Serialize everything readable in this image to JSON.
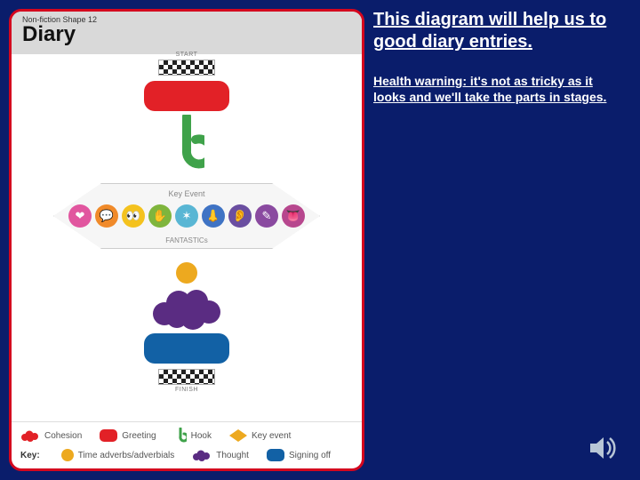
{
  "colors": {
    "slide_bg": "#0a1d6b",
    "card_border": "#d4061e",
    "header_bg": "#d9d9d9",
    "red": "#e22127",
    "green": "#3fa24a",
    "blue": "#1261a5",
    "orange": "#eda91f",
    "purple": "#5a2c82",
    "pink": "#e1569f",
    "teal": "#3aa39a"
  },
  "card": {
    "shape_label": "Non-fiction Shape 12",
    "title": "Diary",
    "start_label": "START",
    "finish_label": "FINISH",
    "diamond_title": "Key Event",
    "diamond_subtitle": "FANTASTICs",
    "fantastic_icons": [
      {
        "bg": "#e1569f",
        "glyph": "❤"
      },
      {
        "bg": "#f08a2a",
        "glyph": "💬"
      },
      {
        "bg": "#f4c21e",
        "glyph": "👀"
      },
      {
        "bg": "#7fb53d",
        "glyph": "✋"
      },
      {
        "bg": "#59b6d4",
        "glyph": "✶"
      },
      {
        "bg": "#3f73c4",
        "glyph": "👃"
      },
      {
        "bg": "#6a4ea0",
        "glyph": "👂"
      },
      {
        "bg": "#8a4aa0",
        "glyph": "✎"
      },
      {
        "bg": "#b7478e",
        "glyph": "👅"
      }
    ]
  },
  "legend": {
    "key_label": "Key:",
    "row1": [
      {
        "swatch_type": "cloud",
        "color": "#e22127",
        "label": "Cohesion"
      },
      {
        "swatch_type": "pill",
        "color": "#e22127",
        "label": "Greeting"
      },
      {
        "swatch_type": "hook",
        "color": "#3fa24a",
        "label": "Hook"
      },
      {
        "swatch_type": "diamond",
        "color": "#eda91f",
        "label": "Key event"
      }
    ],
    "row2": [
      {
        "swatch_type": "circle",
        "color": "#eda91f",
        "label": "Time adverbs/adverbials"
      },
      {
        "swatch_type": "cloud",
        "color": "#5a2c82",
        "label": "Thought"
      },
      {
        "swatch_type": "pill",
        "color": "#1261a5",
        "label": "Signing off"
      }
    ]
  },
  "text_panel": {
    "headline": "This diagram will help us to good diary entries.",
    "subtext": "Health warning: it's not as tricky as it looks and we'll take the parts in stages."
  }
}
